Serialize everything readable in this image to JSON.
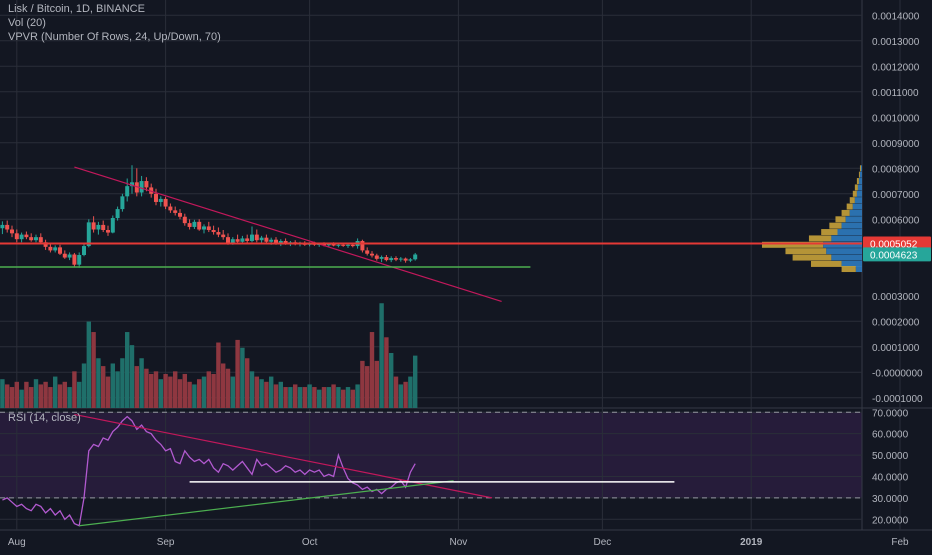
{
  "header": {
    "title": "Lisk / Bitcoin, 1D, BINANCE",
    "volume_indicator": "Vol (20)",
    "vpvr_indicator": "VPVR (Number Of Rows, 24, Up/Down, 70)"
  },
  "colors": {
    "background": "#131722",
    "grid": "#2a2e39",
    "up": "#26a69a",
    "down": "#ef5350",
    "volume_up": "#1f6f6a",
    "volume_down": "#8e3740",
    "rsi_line": "#b25ad0",
    "rsi_band": "#261c3a",
    "trendline_red": "#c2185b",
    "support_green": "#4caf50",
    "resistance_red": "#e53935",
    "axis_text": "#b2b5be"
  },
  "chart_data": {
    "type": "candlestick",
    "symbol": "Lisk / Bitcoin",
    "interval": "1D",
    "exchange": "BINANCE",
    "x_ticks": [
      "Aug",
      "Sep",
      "Oct",
      "Nov",
      "Dec",
      "2019",
      "Feb"
    ],
    "y_ticks": [
      "0.0014000",
      "0.0013000",
      "0.0012000",
      "0.0011000",
      "0.0010000",
      "0.0009000",
      "0.0008000",
      "0.0007000",
      "0.0006000",
      "0.0003000",
      "0.0002000",
      "0.0001000",
      "-0.0000000",
      "-0.0001000"
    ],
    "ylim": [
      -0.00014,
      0.00146
    ],
    "price_labels": [
      {
        "value": 0.0005052,
        "text": "0.0005052",
        "color": "#e53935"
      },
      {
        "value": 0.0004623,
        "text": "0.0004623",
        "color": "#26a69a"
      }
    ],
    "candles": [
      {
        "d": "Jul 29",
        "o": 0.000565,
        "h": 0.000592,
        "l": 0.000542,
        "c": 0.000578
      },
      {
        "d": "Jul 30",
        "o": 0.000578,
        "h": 0.000595,
        "l": 0.000548,
        "c": 0.00056
      },
      {
        "d": "Jul 31",
        "o": 0.00056,
        "h": 0.000575,
        "l": 0.00053,
        "c": 0.000545
      },
      {
        "d": "Aug 1",
        "o": 0.000545,
        "h": 0.00056,
        "l": 0.00051,
        "c": 0.000522
      },
      {
        "d": "Aug 2",
        "o": 0.000522,
        "h": 0.000548,
        "l": 0.00051,
        "c": 0.00054
      },
      {
        "d": "Aug 3",
        "o": 0.00054,
        "h": 0.000552,
        "l": 0.000522,
        "c": 0.00053
      },
      {
        "d": "Aug 4",
        "o": 0.00053,
        "h": 0.000545,
        "l": 0.000512,
        "c": 0.000518
      },
      {
        "d": "Aug 5",
        "o": 0.000518,
        "h": 0.00054,
        "l": 0.00051,
        "c": 0.00053
      },
      {
        "d": "Aug 6",
        "o": 0.00053,
        "h": 0.000545,
        "l": 0.000505,
        "c": 0.00051
      },
      {
        "d": "Aug 7",
        "o": 0.00051,
        "h": 0.00052,
        "l": 0.00048,
        "c": 0.000492
      },
      {
        "d": "Aug 8",
        "o": 0.000492,
        "h": 0.000505,
        "l": 0.00047,
        "c": 0.000478
      },
      {
        "d": "Aug 9",
        "o": 0.000478,
        "h": 0.000498,
        "l": 0.00047,
        "c": 0.00049
      },
      {
        "d": "Aug 10",
        "o": 0.00049,
        "h": 0.0005,
        "l": 0.00046,
        "c": 0.000465
      },
      {
        "d": "Aug 11",
        "o": 0.000465,
        "h": 0.000478,
        "l": 0.000445,
        "c": 0.00045
      },
      {
        "d": "Aug 12",
        "o": 0.00045,
        "h": 0.00047,
        "l": 0.00044,
        "c": 0.000462
      },
      {
        "d": "Aug 13",
        "o": 0.000462,
        "h": 0.000468,
        "l": 0.000415,
        "c": 0.000422
      },
      {
        "d": "Aug 14",
        "o": 0.000422,
        "h": 0.00047,
        "l": 0.00041,
        "c": 0.00046
      },
      {
        "d": "Aug 15",
        "o": 0.00046,
        "h": 0.000505,
        "l": 0.000455,
        "c": 0.000495
      },
      {
        "d": "Aug 16",
        "o": 0.000495,
        "h": 0.0006,
        "l": 0.00049,
        "c": 0.000588
      },
      {
        "d": "Aug 17",
        "o": 0.000588,
        "h": 0.000612,
        "l": 0.000548,
        "c": 0.00056
      },
      {
        "d": "Aug 18",
        "o": 0.00056,
        "h": 0.00059,
        "l": 0.00054,
        "c": 0.000578
      },
      {
        "d": "Aug 19",
        "o": 0.000578,
        "h": 0.000595,
        "l": 0.00055,
        "c": 0.000558
      },
      {
        "d": "Aug 20",
        "o": 0.000558,
        "h": 0.000575,
        "l": 0.000535,
        "c": 0.000548
      },
      {
        "d": "Aug 21",
        "o": 0.000548,
        "h": 0.000615,
        "l": 0.000545,
        "c": 0.000605
      },
      {
        "d": "Aug 22",
        "o": 0.000605,
        "h": 0.00065,
        "l": 0.000595,
        "c": 0.00064
      },
      {
        "d": "Aug 23",
        "o": 0.00064,
        "h": 0.0007,
        "l": 0.00063,
        "c": 0.00069
      },
      {
        "d": "Aug 24",
        "o": 0.00069,
        "h": 0.00076,
        "l": 0.00067,
        "c": 0.00073
      },
      {
        "d": "Aug 25",
        "o": 0.00073,
        "h": 0.000812,
        "l": 0.0007,
        "c": 0.000745
      },
      {
        "d": "Aug 26",
        "o": 0.000745,
        "h": 0.0008,
        "l": 0.00069,
        "c": 0.000705
      },
      {
        "d": "Aug 27",
        "o": 0.000705,
        "h": 0.00077,
        "l": 0.00069,
        "c": 0.00075
      },
      {
        "d": "Aug 28",
        "o": 0.00075,
        "h": 0.000765,
        "l": 0.00071,
        "c": 0.000725
      },
      {
        "d": "Aug 29",
        "o": 0.000725,
        "h": 0.00074,
        "l": 0.000685,
        "c": 0.0007
      },
      {
        "d": "Aug 30",
        "o": 0.0007,
        "h": 0.00072,
        "l": 0.000655,
        "c": 0.000668
      },
      {
        "d": "Aug 31",
        "o": 0.000668,
        "h": 0.00069,
        "l": 0.00065,
        "c": 0.00068
      },
      {
        "d": "Sep 1",
        "o": 0.00068,
        "h": 0.000688,
        "l": 0.00064,
        "c": 0.00065
      },
      {
        "d": "Sep 2",
        "o": 0.00065,
        "h": 0.000662,
        "l": 0.000625,
        "c": 0.000635
      },
      {
        "d": "Sep 3",
        "o": 0.000635,
        "h": 0.00065,
        "l": 0.000615,
        "c": 0.000625
      },
      {
        "d": "Sep 4",
        "o": 0.000625,
        "h": 0.00064,
        "l": 0.0006,
        "c": 0.00061
      },
      {
        "d": "Sep 5",
        "o": 0.00061,
        "h": 0.000622,
        "l": 0.000575,
        "c": 0.000585
      },
      {
        "d": "Sep 6",
        "o": 0.000585,
        "h": 0.0006,
        "l": 0.00056,
        "c": 0.00057
      },
      {
        "d": "Sep 7",
        "o": 0.00057,
        "h": 0.000598,
        "l": 0.000562,
        "c": 0.00059
      },
      {
        "d": "Sep 8",
        "o": 0.00059,
        "h": 0.0006,
        "l": 0.000555,
        "c": 0.00056
      },
      {
        "d": "Sep 9",
        "o": 0.00056,
        "h": 0.00058,
        "l": 0.000545,
        "c": 0.000572
      },
      {
        "d": "Sep 10",
        "o": 0.000572,
        "h": 0.00059,
        "l": 0.00055,
        "c": 0.000558
      },
      {
        "d": "Sep 11",
        "o": 0.000558,
        "h": 0.000575,
        "l": 0.00054,
        "c": 0.00055
      },
      {
        "d": "Sep 12",
        "o": 0.00055,
        "h": 0.000568,
        "l": 0.00053,
        "c": 0.00054
      },
      {
        "d": "Sep 13",
        "o": 0.00054,
        "h": 0.000558,
        "l": 0.00052,
        "c": 0.00053
      },
      {
        "d": "Sep 14",
        "o": 0.00053,
        "h": 0.000545,
        "l": 0.0005,
        "c": 0.000508
      },
      {
        "d": "Sep 15",
        "o": 0.000508,
        "h": 0.00053,
        "l": 0.0005,
        "c": 0.000522
      },
      {
        "d": "Sep 16",
        "o": 0.000522,
        "h": 0.00054,
        "l": 0.000505,
        "c": 0.000512
      },
      {
        "d": "Sep 17",
        "o": 0.000512,
        "h": 0.000535,
        "l": 0.000505,
        "c": 0.000525
      },
      {
        "d": "Sep 18",
        "o": 0.000525,
        "h": 0.00054,
        "l": 0.000508,
        "c": 0.000515
      },
      {
        "d": "Sep 19",
        "o": 0.000515,
        "h": 0.000572,
        "l": 0.00051,
        "c": 0.00054
      },
      {
        "d": "Sep 20",
        "o": 0.00054,
        "h": 0.00056,
        "l": 0.00051,
        "c": 0.000518
      },
      {
        "d": "Sep 21",
        "o": 0.000518,
        "h": 0.000535,
        "l": 0.000505,
        "c": 0.000528
      },
      {
        "d": "Sep 22",
        "o": 0.000528,
        "h": 0.00054,
        "l": 0.000508,
        "c": 0.000512
      },
      {
        "d": "Sep 23",
        "o": 0.000512,
        "h": 0.000528,
        "l": 0.0005,
        "c": 0.00052
      },
      {
        "d": "Sep 24",
        "o": 0.00052,
        "h": 0.00053,
        "l": 0.0005,
        "c": 0.000508
      },
      {
        "d": "Sep 25",
        "o": 0.000508,
        "h": 0.000522,
        "l": 0.000495,
        "c": 0.000515
      },
      {
        "d": "Sep 26",
        "o": 0.000515,
        "h": 0.000525,
        "l": 0.0005,
        "c": 0.000505
      },
      {
        "d": "Sep 27",
        "o": 0.000505,
        "h": 0.000515,
        "l": 0.000495,
        "c": 0.00051
      },
      {
        "d": "Sep 28",
        "o": 0.00051,
        "h": 0.000518,
        "l": 0.000498,
        "c": 0.000502
      },
      {
        "d": "Sep 29",
        "o": 0.000502,
        "h": 0.000512,
        "l": 0.000494,
        "c": 0.000506
      },
      {
        "d": "Sep 30",
        "o": 0.000506,
        "h": 0.000514,
        "l": 0.000496,
        "c": 0.0005
      },
      {
        "d": "Oct 1",
        "o": 0.0005,
        "h": 0.00051,
        "l": 0.000494,
        "c": 0.000505
      },
      {
        "d": "Oct 2",
        "o": 0.000505,
        "h": 0.000512,
        "l": 0.000496,
        "c": 0.0005
      },
      {
        "d": "Oct 3",
        "o": 0.0005,
        "h": 0.000508,
        "l": 0.000492,
        "c": 0.000503
      },
      {
        "d": "Oct 4",
        "o": 0.000503,
        "h": 0.00051,
        "l": 0.000494,
        "c": 0.000498
      },
      {
        "d": "Oct 5",
        "o": 0.000498,
        "h": 0.000508,
        "l": 0.00049,
        "c": 0.000502
      },
      {
        "d": "Oct 6",
        "o": 0.000502,
        "h": 0.00051,
        "l": 0.000494,
        "c": 0.000497
      },
      {
        "d": "Oct 7",
        "o": 0.000497,
        "h": 0.000506,
        "l": 0.00049,
        "c": 0.0005
      },
      {
        "d": "Oct 8",
        "o": 0.0005,
        "h": 0.000508,
        "l": 0.000492,
        "c": 0.000496
      },
      {
        "d": "Oct 9",
        "o": 0.000496,
        "h": 0.000505,
        "l": 0.000488,
        "c": 0.0005
      },
      {
        "d": "Oct 10",
        "o": 0.0005,
        "h": 0.000508,
        "l": 0.00049,
        "c": 0.000495
      },
      {
        "d": "Oct 11",
        "o": 0.000495,
        "h": 0.000525,
        "l": 0.000485,
        "c": 0.000515
      },
      {
        "d": "Oct 12",
        "o": 0.000515,
        "h": 0.00052,
        "l": 0.00047,
        "c": 0.000478
      },
      {
        "d": "Oct 13",
        "o": 0.000478,
        "h": 0.00049,
        "l": 0.000458,
        "c": 0.000465
      },
      {
        "d": "Oct 14",
        "o": 0.000465,
        "h": 0.000475,
        "l": 0.00045,
        "c": 0.000458
      },
      {
        "d": "Oct 15",
        "o": 0.000458,
        "h": 0.000465,
        "l": 0.000438,
        "c": 0.000445
      },
      {
        "d": "Oct 16",
        "o": 0.000445,
        "h": 0.000458,
        "l": 0.000432,
        "c": 0.000452
      },
      {
        "d": "Oct 17",
        "o": 0.000452,
        "h": 0.00046,
        "l": 0.000435,
        "c": 0.00044
      },
      {
        "d": "Oct 18",
        "o": 0.00044,
        "h": 0.000455,
        "l": 0.000432,
        "c": 0.000448
      },
      {
        "d": "Oct 19",
        "o": 0.000448,
        "h": 0.000455,
        "l": 0.000436,
        "c": 0.000442
      },
      {
        "d": "Oct 20",
        "o": 0.000442,
        "h": 0.000452,
        "l": 0.000434,
        "c": 0.000446
      },
      {
        "d": "Oct 21",
        "o": 0.000446,
        "h": 0.00045,
        "l": 0.00043,
        "c": 0.000438
      },
      {
        "d": "Oct 22",
        "o": 0.000438,
        "h": 0.000448,
        "l": 0.000432,
        "c": 0.000443
      },
      {
        "d": "Oct 23",
        "o": 0.000443,
        "h": 0.000468,
        "l": 0.000438,
        "c": 0.000462
      }
    ],
    "volume": {
      "name": "Vol (20)",
      "values": [
        0.00011,
        9e-05,
        8e-05,
        0.0001,
        7e-05,
        0.0001,
        8e-05,
        0.00011,
        9e-05,
        0.0001,
        8e-05,
        0.00012,
        9e-05,
        0.0001,
        8e-05,
        0.00014,
        0.0001,
        0.00017,
        0.00033,
        0.00029,
        0.00019,
        0.00016,
        0.00012,
        0.00017,
        0.00014,
        0.00019,
        0.00029,
        0.00024,
        0.00016,
        0.00019,
        0.00015,
        0.00013,
        0.00014,
        0.00011,
        0.00013,
        0.00012,
        0.00014,
        0.00011,
        0.00013,
        0.0001,
        9e-05,
        0.00011,
        0.00012,
        0.00014,
        0.00013,
        0.00025,
        0.00017,
        0.00015,
        0.00012,
        0.00026,
        0.00023,
        0.00019,
        0.00014,
        0.00012,
        0.00011,
        0.0001,
        0.00012,
        9e-05,
        0.0001,
        8e-05,
        8e-05,
        9e-05,
        8e-05,
        8e-05,
        9e-05,
        8e-05,
        7e-05,
        8e-05,
        8e-05,
        9e-05,
        8e-05,
        7e-05,
        8e-05,
        7e-05,
        9e-05,
        0.00018,
        0.00016,
        0.00029,
        0.00018,
        0.0004,
        0.00027,
        0.00021,
        0.00012,
        9e-05,
        0.0001,
        0.00012,
        0.0002
      ]
    },
    "vpvr": {
      "name": "VPVR (Number Of Rows, 24, Up/Down, 70)",
      "rows": [
        {
          "price": 0.0008,
          "up": 1,
          "down": 1
        },
        {
          "price": 0.000775,
          "up": 2,
          "down": 1
        },
        {
          "price": 0.00075,
          "up": 3,
          "down": 2
        },
        {
          "price": 0.000725,
          "up": 4,
          "down": 3
        },
        {
          "price": 0.0007,
          "up": 5,
          "down": 4
        },
        {
          "price": 0.000675,
          "up": 7,
          "down": 5
        },
        {
          "price": 0.00065,
          "up": 9,
          "down": 6
        },
        {
          "price": 0.000625,
          "up": 12,
          "down": 8
        },
        {
          "price": 0.0006,
          "up": 16,
          "down": 10
        },
        {
          "price": 0.000575,
          "up": 20,
          "down": 12
        },
        {
          "price": 0.00055,
          "up": 24,
          "down": 16
        },
        {
          "price": 0.000525,
          "up": 30,
          "down": 22
        },
        {
          "price": 0.0005,
          "up": 38,
          "down": 60
        },
        {
          "price": 0.000475,
          "up": 35,
          "down": 40
        },
        {
          "price": 0.00045,
          "up": 30,
          "down": 38
        },
        {
          "price": 0.000425,
          "up": 20,
          "down": 30
        },
        {
          "price": 0.000405,
          "up": 6,
          "down": 14
        }
      ]
    },
    "drawings": [
      {
        "kind": "trendline",
        "color": "#c2185b",
        "from": {
          "d": "Aug 13",
          "v": 0.000805
        },
        "to": {
          "d": "Nov 10",
          "v": 0.000278
        }
      },
      {
        "kind": "horizontal",
        "color": "#e53935",
        "value": 0.0005052
      },
      {
        "kind": "horizontal-segment",
        "color": "#4caf50",
        "value": 0.000413,
        "from": "Jul 29",
        "to": "Nov 16"
      }
    ],
    "rsi": {
      "name": "RSI (14, close)",
      "ylim": [
        15,
        72
      ],
      "y_ticks": [
        "70.0000",
        "60.0000",
        "50.0000",
        "40.0000",
        "30.0000",
        "20.0000"
      ],
      "band": [
        30,
        70
      ],
      "values": [
        29,
        30,
        28,
        26,
        27,
        25,
        24,
        27,
        26,
        23,
        25,
        22,
        24,
        20,
        22,
        18,
        17,
        30,
        52,
        55,
        54,
        58,
        57,
        61,
        63,
        66,
        68,
        66,
        62,
        64,
        61,
        60,
        57,
        55,
        52,
        53,
        47,
        46,
        52,
        49,
        47,
        48,
        46,
        48,
        44,
        42,
        46,
        45,
        43,
        45,
        47,
        44,
        41,
        48,
        45,
        46,
        44,
        42,
        43,
        45,
        44,
        42,
        43,
        41,
        43,
        42,
        43,
        40,
        41,
        40,
        50,
        44,
        39,
        37,
        36,
        34,
        35,
        33,
        34,
        32,
        34,
        35,
        37,
        38,
        35,
        42,
        46
      ],
      "drawings": [
        {
          "kind": "trendline",
          "color": "#c2185b",
          "from": {
            "d": "Aug 13",
            "v": 69
          },
          "to": {
            "d": "Nov 8",
            "v": 30
          }
        },
        {
          "kind": "trendline",
          "color": "#4caf50",
          "from": {
            "d": "Aug 14",
            "v": 17
          },
          "to": {
            "d": "Oct 31",
            "v": 38
          }
        },
        {
          "kind": "horizontal-segment",
          "color": "#ffffff",
          "value": 37.5,
          "from": "Sep 6",
          "to": "Dec 16"
        }
      ]
    }
  }
}
